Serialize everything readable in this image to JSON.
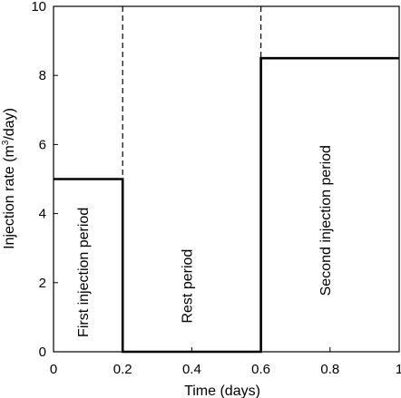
{
  "chart_data": {
    "type": "line",
    "xlabel": "Time (days)",
    "ylabel_prefix": "Injection rate (m",
    "ylabel_sup": "3",
    "ylabel_suffix": "/day)",
    "xlim": [
      0,
      1
    ],
    "ylim": [
      0,
      10
    ],
    "x_ticks": [
      0,
      0.2,
      0.4,
      0.6,
      0.8,
      1
    ],
    "x_tick_labels": [
      "0",
      "0.2",
      "0.4",
      "0.6",
      "0.8",
      "1"
    ],
    "y_ticks": [
      0,
      2,
      4,
      6,
      8,
      10
    ],
    "y_tick_labels": [
      "0",
      "2",
      "4",
      "6",
      "8",
      "10"
    ],
    "grid": false,
    "step_series": {
      "x": [
        0,
        0.2,
        0.2,
        0.6,
        0.6,
        1
      ],
      "y": [
        5,
        5,
        0,
        0,
        8.5,
        8.5
      ]
    },
    "vlines": [
      0.2,
      0.6
    ],
    "annotations": [
      {
        "text": "First injection period",
        "x": 0.1,
        "y": 2.3
      },
      {
        "text": "Rest period",
        "x": 0.4,
        "y": 1.9
      },
      {
        "text": "Second injection period",
        "x": 0.8,
        "y": 3.8
      }
    ]
  }
}
